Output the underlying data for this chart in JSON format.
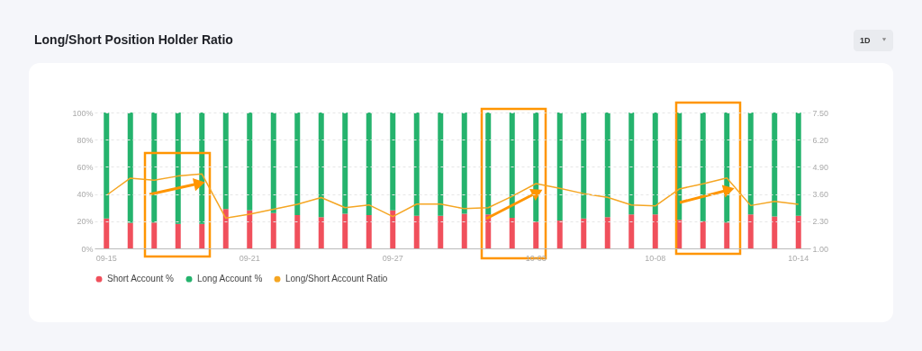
{
  "chart_data": {
    "type": "bar",
    "title": "Long/Short Position Holder Ratio",
    "annotations": [
      "1D"
    ],
    "categories": [
      "09-15",
      null,
      null,
      null,
      null,
      null,
      "09-21",
      null,
      null,
      null,
      null,
      null,
      "09-27",
      null,
      null,
      null,
      null,
      null,
      "10-03",
      null,
      null,
      null,
      null,
      "10-08",
      null,
      null,
      null,
      null,
      null,
      "10-14"
    ],
    "stacked": true,
    "series": [
      {
        "name": "Short Account %",
        "color": "#f0505c",
        "values": [
          22,
          18.8,
          19,
          18,
          18,
          29,
          28,
          26,
          24.5,
          23,
          25.5,
          24.5,
          28,
          24,
          24,
          25.5,
          25,
          22.5,
          19.6,
          20.5,
          22,
          23,
          25,
          25,
          21,
          20,
          19,
          25,
          23.5,
          24
        ]
      },
      {
        "name": "Long Account %",
        "color": "#25b36d",
        "values": [
          78,
          81.2,
          81,
          82,
          82,
          71,
          72,
          74,
          75.5,
          77,
          74.5,
          75.5,
          72,
          76,
          76,
          74.5,
          75,
          77.5,
          80.4,
          79.5,
          78,
          77,
          75,
          75,
          79,
          80,
          81,
          75,
          76.5,
          76
        ]
      },
      {
        "name": "Long/Short Account Ratio",
        "color": "#f5a623",
        "type": "line",
        "axis": "y2",
        "values": [
          3.54,
          4.36,
          4.26,
          4.46,
          4.56,
          2.45,
          2.64,
          2.87,
          3.11,
          3.43,
          2.95,
          3.08,
          2.52,
          3.12,
          3.12,
          2.9,
          2.95,
          3.49,
          4.1,
          3.87,
          3.62,
          3.44,
          3.08,
          3.03,
          3.84,
          4.09,
          4.37,
          3.05,
          3.25,
          3.11
        ]
      }
    ],
    "ylim": [
      0,
      100
    ],
    "yticks": [
      {
        "value": 0,
        "label": "0%"
      },
      {
        "value": 20,
        "label": "20%"
      },
      {
        "value": 40,
        "label": "40%"
      },
      {
        "value": 60,
        "label": "60%"
      },
      {
        "value": 80,
        "label": "80%"
      },
      {
        "value": 100,
        "label": "100%"
      }
    ],
    "y2lim": [
      1,
      7.5
    ],
    "y2ticks": [
      {
        "value": 1,
        "label": "1.00"
      },
      {
        "value": 2.3,
        "label": "2.30"
      },
      {
        "value": 3.6,
        "label": "3.60"
      },
      {
        "value": 4.9,
        "label": "4.90"
      },
      {
        "value": 6.2,
        "label": "6.20"
      },
      {
        "value": 7.5,
        "label": "7.50"
      }
    ],
    "grid": "y",
    "legend": "bottom"
  }
}
